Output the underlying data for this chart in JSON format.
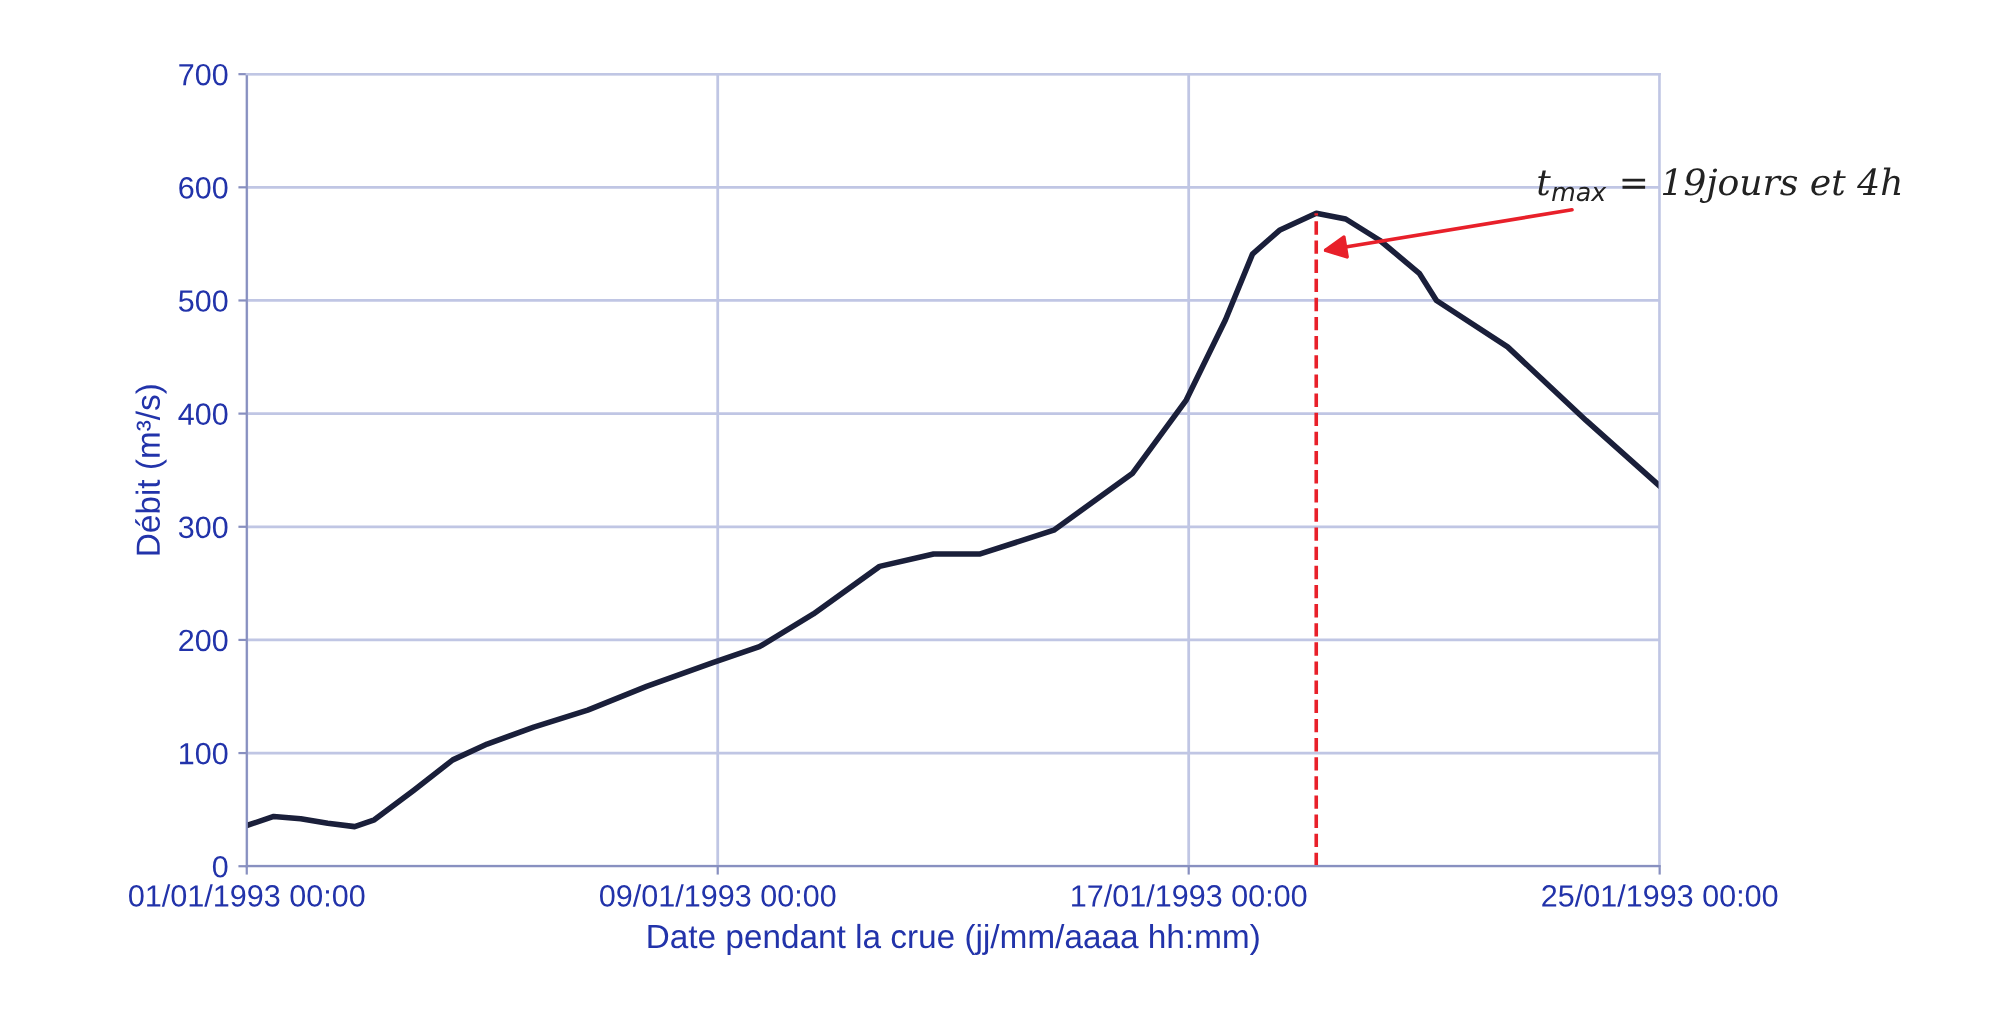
{
  "chart_data": {
    "type": "line",
    "xlabel": "Date pendant la crue (jj/mm/aaaa hh:mm)",
    "ylabel": "Débit (m³/s)",
    "x": [
      "1993-01-01T00:00",
      "1993-01-01T11:00",
      "1993-01-01T22:00",
      "1993-01-02T09:00",
      "1993-01-02T20:00",
      "1993-01-03T04:00",
      "1993-01-03T20:00",
      "1993-01-04T12:00",
      "1993-01-05T02:00",
      "1993-01-05T21:00",
      "1993-01-06T19:00",
      "1993-01-07T19:00",
      "1993-01-08T22:00",
      "1993-01-09T17:00",
      "1993-01-10T15:00",
      "1993-01-11T18:00",
      "1993-01-12T16:00",
      "1993-01-13T11:00",
      "1993-01-14T17:00",
      "1993-01-16T01:00",
      "1993-01-16T23:00",
      "1993-01-17T15:00",
      "1993-01-18T02:00",
      "1993-01-18T13:00",
      "1993-01-19T04:00",
      "1993-01-19T16:00",
      "1993-01-20T06:00",
      "1993-01-20T22:00",
      "1993-01-21T05:00",
      "1993-01-22T10:00",
      "1993-01-23T18:00",
      "1993-01-25T00:00"
    ],
    "series": [
      {
        "color": "#1a1f3a",
        "values": [
          36,
          44,
          42,
          38,
          35,
          41,
          67,
          94,
          108,
          123,
          138,
          159,
          180,
          194,
          223,
          265,
          276,
          276,
          297,
          347,
          412,
          483,
          541,
          562,
          577,
          572,
          553,
          524,
          500,
          459,
          394,
          336
        ]
      }
    ],
    "xlim": [
      "1993-01-01T00:00",
      "1993-01-25T00:00"
    ],
    "xticks": [
      {
        "value": "1993-01-01T00:00",
        "label": "01/01/1993 00:00"
      },
      {
        "value": "1993-01-09T00:00",
        "label": "09/01/1993 00:00"
      },
      {
        "value": "1993-01-17T00:00",
        "label": "17/01/1993 00:00"
      },
      {
        "value": "1993-01-25T00:00",
        "label": "25/01/1993 00:00"
      }
    ],
    "ylim": [
      0,
      700
    ],
    "yticks": [
      0,
      100,
      200,
      300,
      400,
      500,
      600,
      700
    ],
    "grid": true,
    "marker": "none",
    "line_style": "solid",
    "ref_lines": [
      {
        "axis": "x",
        "value": "1993-01-19T04:00",
        "label": null,
        "color": "#e8202a",
        "line_style": "dashed"
      }
    ],
    "annotations": [
      {
        "text": "t$_{max}$ = 19jours et 4h",
        "x": "1993-01-19T04:00",
        "y": 543
      }
    ]
  }
}
